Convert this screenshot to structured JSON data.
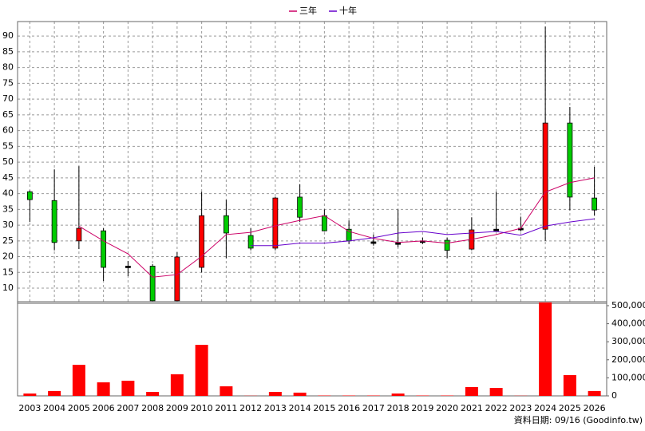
{
  "chart_data": [
    {
      "type": "candlestick",
      "categories": [
        "2003",
        "2004",
        "2005",
        "2006",
        "2007",
        "2008",
        "2009",
        "2010",
        "2011",
        "2012",
        "2013",
        "2014",
        "2015",
        "2016",
        "2017",
        "2018",
        "2019",
        "2020",
        "2021",
        "2022",
        "2023",
        "2024",
        "2025",
        "2026"
      ],
      "open": [
        40.6,
        37.8,
        25,
        28.2,
        17,
        17,
        6,
        16.6,
        33,
        26.7,
        22.7,
        38.9,
        33,
        28.7,
        24.7,
        24.4,
        25,
        25.2,
        22.4,
        28.7,
        29,
        28.7,
        62.4,
        38.6
      ],
      "high": [
        41,
        47.7,
        48.7,
        29,
        18.6,
        17.6,
        21.4,
        40.6,
        38,
        29,
        39,
        43,
        35,
        31.5,
        27,
        35,
        26,
        26,
        32.5,
        40.6,
        32.7,
        93,
        67.5,
        48.5
      ],
      "low": [
        31,
        22,
        22.4,
        12.3,
        13.8,
        5.9,
        5.9,
        15,
        19.5,
        22,
        22,
        31,
        28,
        24,
        23.5,
        23,
        24,
        19.5,
        22,
        28,
        28,
        25,
        34.7,
        33
      ],
      "close": [
        38.1,
        24.5,
        29,
        16.6,
        17,
        6,
        19.9,
        33,
        27.5,
        22.7,
        38.6,
        32.5,
        28.2,
        25,
        24.7,
        24.4,
        25,
        22,
        28.5,
        28.7,
        29,
        62.4,
        38.9,
        34.8
      ],
      "up_color": "#ff0000",
      "down_color": "#00cc00",
      "flat_color": "#000000",
      "series": [
        {
          "name": "三年",
          "color": "#cc0066",
          "values": [
            null,
            null,
            29.7,
            25,
            20.9,
            13.5,
            14.3,
            20.1,
            27,
            27.7,
            29.8,
            31.5,
            33,
            28,
            25.8,
            24.5,
            25,
            24.3,
            25.5,
            27,
            29,
            40.5,
            43.5,
            45
          ]
        },
        {
          "name": "十年",
          "color": "#6600cc",
          "values": [
            null,
            null,
            null,
            null,
            null,
            null,
            null,
            null,
            null,
            23.5,
            23.5,
            24.3,
            24.3,
            25,
            26,
            27.5,
            28,
            27,
            27.5,
            28,
            26.8,
            29.7,
            31,
            32
          ]
        }
      ],
      "ylim": [
        5.2,
        94.6
      ],
      "yticks": [
        10,
        15,
        20,
        25,
        30,
        35,
        40,
        45,
        50,
        55,
        60,
        65,
        70,
        75,
        80,
        85,
        90
      ],
      "grid": true,
      "legend": "top"
    },
    {
      "type": "bar",
      "values": [
        13000,
        27000,
        172000,
        75000,
        84000,
        22000,
        120000,
        283000,
        53000,
        1000,
        22000,
        18000,
        2000,
        2000,
        2000,
        13000,
        2000,
        2000,
        49000,
        44000,
        1000,
        518000,
        115000,
        27000
      ],
      "color": "#ff0000",
      "ylim": [
        0,
        522000
      ],
      "yticks": [
        0,
        {
          "value": 100000,
          "label": "100,000"
        },
        {
          "value": 200000,
          "label": "200,000"
        },
        {
          "value": 300000,
          "label": "300,000"
        },
        {
          "value": 400000,
          "label": "400,000"
        },
        {
          "value": 500000,
          "label": "500,000"
        }
      ],
      "source": "資料日期: 09/16 (Goodinfo.tw)"
    }
  ]
}
